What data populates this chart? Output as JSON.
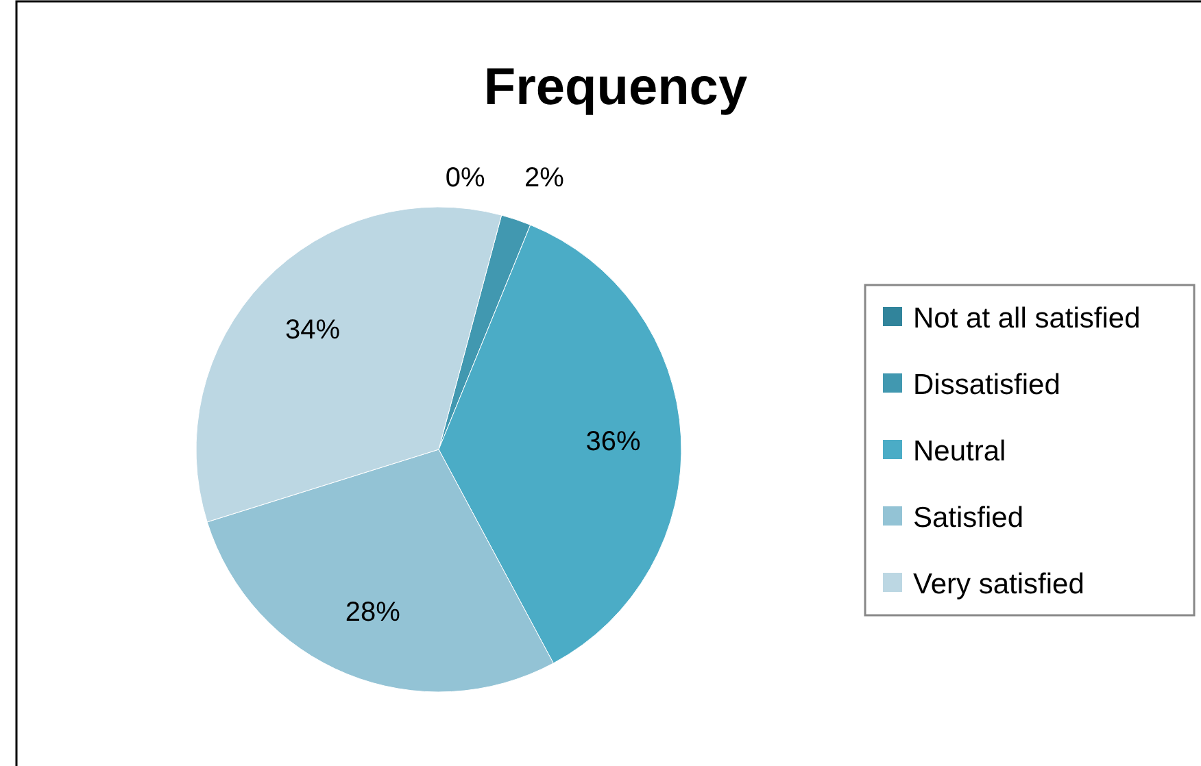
{
  "chart_data": {
    "type": "pie",
    "title": "Frequency",
    "categories": [
      "Not at all satisfied",
      "Dissatisfied",
      "Neutral",
      "Satisfied",
      "Very satisfied"
    ],
    "values": [
      0,
      2,
      36,
      28,
      34
    ],
    "colors": [
      "#31849b",
      "#4198b0",
      "#4bacc6",
      "#93c3d5",
      "#bcd7e3"
    ],
    "value_labels": [
      "0%",
      "2%",
      "36%",
      "28%",
      "34%"
    ],
    "legend": "right"
  }
}
